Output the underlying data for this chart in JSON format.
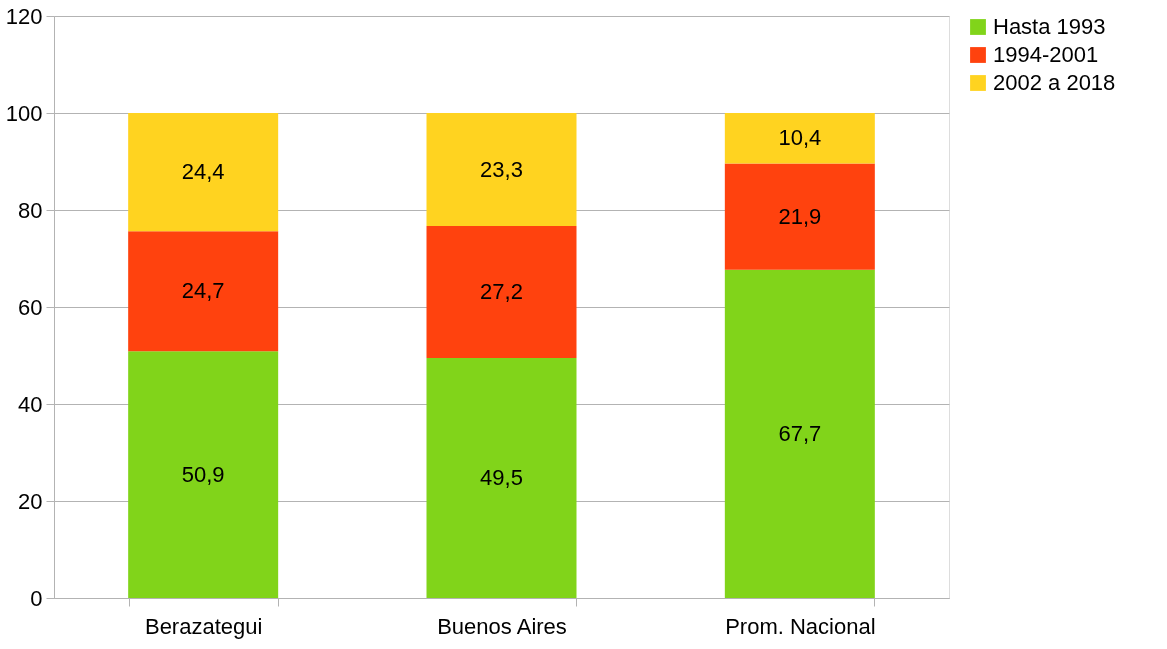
{
  "chart_data": {
    "type": "bar",
    "stacked": true,
    "categories": [
      "Berazategui",
      "Buenos Aires",
      "Prom. Nacional"
    ],
    "series": [
      {
        "name": "Hasta 1993",
        "color": "#81d41a",
        "values": [
          50.9,
          49.5,
          67.7
        ],
        "value_labels": [
          "50,9",
          "49,5",
          "67,7"
        ]
      },
      {
        "name": "1994-2001",
        "color": "#ff420e",
        "values": [
          24.7,
          27.2,
          21.9
        ],
        "value_labels": [
          "24,7",
          "27,2",
          "21,9"
        ]
      },
      {
        "name": "2002 a 2018",
        "color": "#ffd320",
        "values": [
          24.4,
          23.3,
          10.4
        ],
        "value_labels": [
          "24,4",
          "23,3",
          "10,4"
        ]
      }
    ],
    "ylim": [
      0,
      120
    ],
    "yticks": [
      0,
      20,
      40,
      60,
      80,
      100,
      120
    ],
    "grid": "y",
    "legend": "right"
  }
}
